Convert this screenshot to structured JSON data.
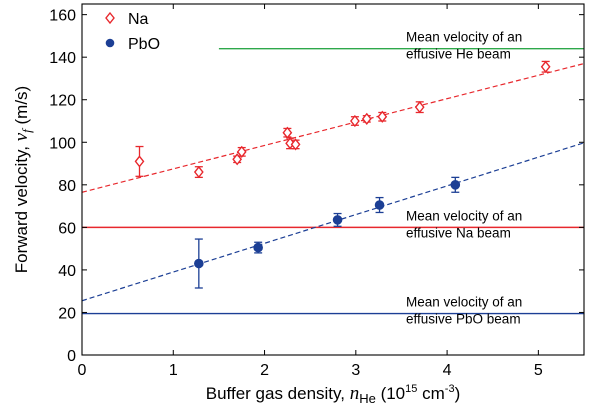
{
  "chart_data": {
    "type": "scatter",
    "title": "",
    "xlabel_parts": {
      "main": "Buffer gas density, ",
      "var": "n",
      "var_sub": "He",
      "unit_open": " (10",
      "unit_exp": "15",
      "unit_mid": " cm",
      "unit_exp2": "-3",
      "unit_close": ")"
    },
    "ylabel_parts": {
      "main": "Forward velocity, ",
      "var": "v",
      "var_sub": "f",
      "unit": " (m/s)"
    },
    "xlim": [
      0,
      5.5
    ],
    "ylim": [
      0,
      165
    ],
    "xticks": [
      0,
      1,
      2,
      3,
      4,
      5
    ],
    "yticks": [
      0,
      20,
      40,
      60,
      80,
      100,
      120,
      140,
      160
    ],
    "grid": false,
    "legend_position": "top-left",
    "series": [
      {
        "name": "Na",
        "marker": "diamond-open",
        "color": "#e8282d",
        "points": [
          {
            "x": 0.63,
            "y": 91,
            "err": 7
          },
          {
            "x": 1.28,
            "y": 86,
            "err": 2.5
          },
          {
            "x": 1.7,
            "y": 92,
            "err": 1.5
          },
          {
            "x": 1.75,
            "y": 95.5,
            "err": 2
          },
          {
            "x": 2.25,
            "y": 104.5,
            "err": 2
          },
          {
            "x": 2.28,
            "y": 99.5,
            "err": 2.5
          },
          {
            "x": 2.34,
            "y": 99,
            "err": 2
          },
          {
            "x": 2.99,
            "y": 110,
            "err": 2
          },
          {
            "x": 3.12,
            "y": 111,
            "err": 1.5
          },
          {
            "x": 3.29,
            "y": 112,
            "err": 2
          },
          {
            "x": 3.7,
            "y": 116.5,
            "err": 2.5
          },
          {
            "x": 5.08,
            "y": 135.5,
            "err": 2.5
          }
        ],
        "fit": {
          "intercept": 76.5,
          "slope": 11.0,
          "style": "dashed"
        }
      },
      {
        "name": "PbO",
        "marker": "circle-filled",
        "color": "#1c3f95",
        "points": [
          {
            "x": 1.28,
            "y": 43,
            "err": 11.5
          },
          {
            "x": 1.93,
            "y": 50.5,
            "err": 2.5
          },
          {
            "x": 2.8,
            "y": 63.5,
            "err": 3
          },
          {
            "x": 3.26,
            "y": 70.5,
            "err": 3.5
          },
          {
            "x": 4.09,
            "y": 80,
            "err": 3.5
          }
        ],
        "fit": {
          "intercept": 25.5,
          "slope": 13.5,
          "style": "dashed"
        }
      }
    ],
    "reference_lines": [
      {
        "y": 144,
        "x_start": 1.5,
        "x_end": 5.5,
        "color": "#2ea84a",
        "label": [
          "Mean velocity of an",
          "effusive He beam"
        ]
      },
      {
        "y": 60,
        "x_start": 0,
        "x_end": 5.5,
        "color": "#e8282d",
        "label": [
          "Mean velocity of an",
          "effusive Na beam"
        ]
      },
      {
        "y": 19.5,
        "x_start": 0,
        "x_end": 5.5,
        "color": "#1c3f95",
        "label": [
          "Mean velocity of an",
          "effusive PbO beam"
        ]
      }
    ]
  }
}
